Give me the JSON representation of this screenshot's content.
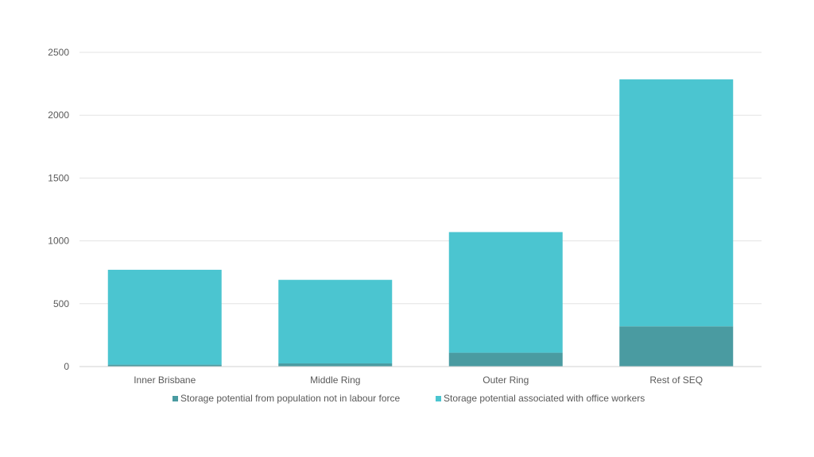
{
  "chart_data": {
    "type": "bar",
    "stacked": true,
    "categories": [
      "Inner Brisbane",
      "Middle Ring",
      "Outer Ring",
      "Rest of SEQ"
    ],
    "series": [
      {
        "name": "Storage potential from population not in labour force",
        "color": "#4A9BA1",
        "values": [
          15,
          25,
          110,
          320
        ]
      },
      {
        "name": "Storage potential associated with office workers",
        "color": "#4BC5D0",
        "values": [
          755,
          665,
          960,
          1965
        ]
      }
    ],
    "y_ticks": [
      "0",
      "500",
      "1000",
      "1500",
      "2000",
      "2500"
    ],
    "ylim": [
      0,
      2500
    ],
    "grid": true,
    "legend_position": "bottom"
  }
}
